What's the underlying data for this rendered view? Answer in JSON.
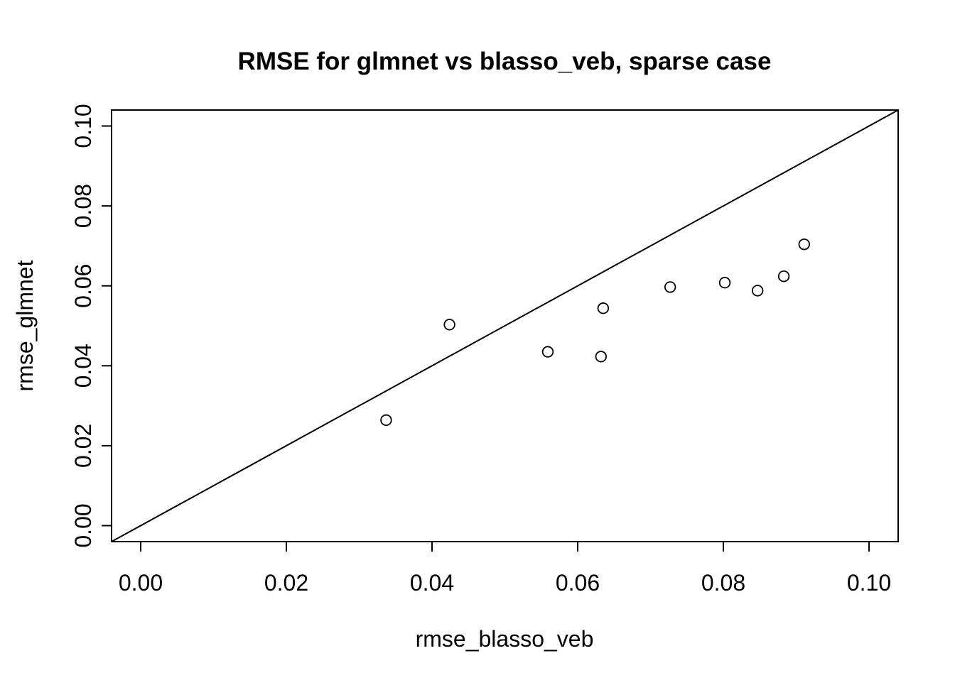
{
  "title": "RMSE for glmnet vs blasso_veb, sparse case",
  "colors": {
    "foreground": "#000000",
    "background": "#ffffff"
  },
  "chart_data": {
    "type": "scatter",
    "title": "RMSE for glmnet vs blasso_veb, sparse case",
    "xlabel": "rmse_blasso_veb",
    "ylabel": "rmse_glmnet",
    "xlim": [
      -0.004,
      0.104
    ],
    "ylim": [
      -0.004,
      0.104
    ],
    "x_ticks": [
      0.0,
      0.02,
      0.04,
      0.06,
      0.08,
      0.1
    ],
    "y_ticks": [
      0.0,
      0.02,
      0.04,
      0.06,
      0.08,
      0.1
    ],
    "x_tick_labels": [
      "0.00",
      "0.02",
      "0.04",
      "0.06",
      "0.08",
      "0.10"
    ],
    "y_tick_labels": [
      "0.00",
      "0.02",
      "0.04",
      "0.06",
      "0.08",
      "0.10"
    ],
    "grid": false,
    "legend": null,
    "reference_line": {
      "intercept": 0,
      "slope": 1,
      "style": "solid",
      "color": "#000000"
    },
    "marker": {
      "shape": "open-circle",
      "radius_px": 7.3,
      "stroke_px": 1.8,
      "color": "#000000"
    },
    "points": [
      {
        "x": 0.0337,
        "y": 0.0264
      },
      {
        "x": 0.0424,
        "y": 0.0503
      },
      {
        "x": 0.0559,
        "y": 0.0435
      },
      {
        "x": 0.0632,
        "y": 0.0423
      },
      {
        "x": 0.0635,
        "y": 0.0544
      },
      {
        "x": 0.0727,
        "y": 0.0597
      },
      {
        "x": 0.0802,
        "y": 0.0608
      },
      {
        "x": 0.0847,
        "y": 0.0588
      },
      {
        "x": 0.0883,
        "y": 0.0624
      },
      {
        "x": 0.0911,
        "y": 0.0704
      }
    ]
  }
}
